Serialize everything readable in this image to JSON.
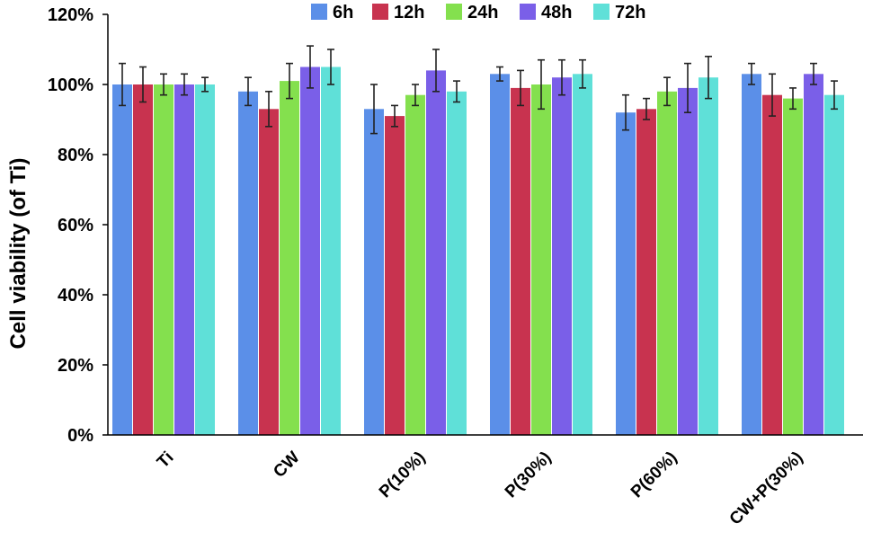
{
  "chart_data": {
    "type": "bar",
    "title": "",
    "xlabel": "",
    "ylabel": "Cell viability (of Ti)",
    "ylim": [
      0,
      120
    ],
    "yticks": [
      "0%",
      "20%",
      "40%",
      "60%",
      "80%",
      "100%",
      "120%"
    ],
    "legend_position": "top",
    "grid": false,
    "categories": [
      "Ti",
      "CW",
      "P(10%)",
      "P(30%)",
      "P(60%)",
      "CW+P(30%)"
    ],
    "series": [
      {
        "name": "6h",
        "color": "#5b8fe8",
        "values": [
          100,
          98,
          93,
          103,
          92,
          103
        ],
        "errors": [
          6,
          4,
          7,
          2,
          5,
          3
        ]
      },
      {
        "name": "12h",
        "color": "#c8334f",
        "values": [
          100,
          93,
          91,
          99,
          93,
          97
        ],
        "errors": [
          5,
          5,
          3,
          5,
          3,
          6
        ]
      },
      {
        "name": "24h",
        "color": "#84e04e",
        "values": [
          100,
          101,
          97,
          100,
          98,
          96
        ],
        "errors": [
          3,
          5,
          3,
          7,
          4,
          3
        ]
      },
      {
        "name": "48h",
        "color": "#7a5fe8",
        "values": [
          100,
          105,
          104,
          102,
          99,
          103
        ],
        "errors": [
          3,
          6,
          6,
          5,
          7,
          3
        ]
      },
      {
        "name": "72h",
        "color": "#5fe0d8",
        "values": [
          100,
          105,
          98,
          103,
          102,
          97
        ],
        "errors": [
          2,
          5,
          3,
          4,
          6,
          4
        ]
      }
    ]
  }
}
